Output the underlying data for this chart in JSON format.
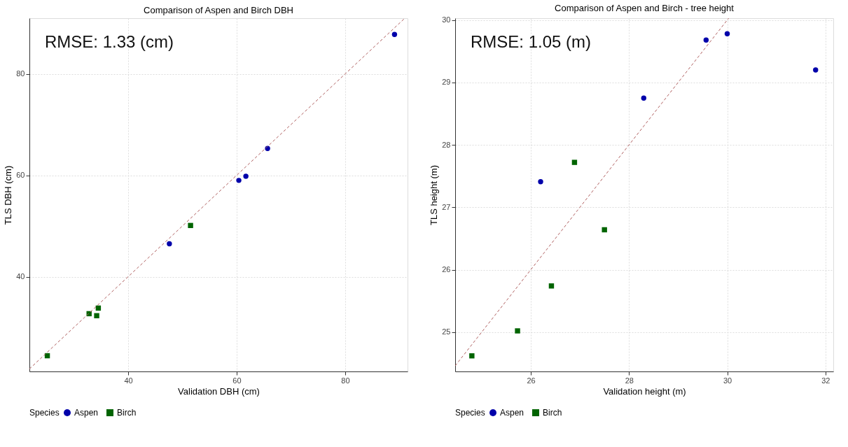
{
  "chart_data": [
    {
      "type": "scatter",
      "title": "Comparison of Aspen and Birch DBH",
      "xlabel": "Validation DBH (cm)",
      "ylabel": "TLS DBH (cm)",
      "legend_title": "Species",
      "legend": "bottom",
      "grid": true,
      "annotations": [
        "RMSE: 1.33 (cm)"
      ],
      "xlim": [
        21.8,
        91.5
      ],
      "ylim": [
        21.3,
        91
      ],
      "xticks": [
        40,
        60,
        80
      ],
      "yticks": [
        40,
        60,
        80
      ],
      "series": [
        {
          "name": "Aspen",
          "color": "#0000aa",
          "marker": "circle",
          "x": [
            89.1,
            65.7,
            60.4,
            61.7,
            47.6
          ],
          "values": [
            87.8,
            65.3,
            59.0,
            59.8,
            46.5
          ]
        },
        {
          "name": "Birch",
          "color": "#006400",
          "marker": "square",
          "x": [
            51.5,
            32.8,
            34.2,
            34.5,
            25.1
          ],
          "values": [
            50.1,
            32.7,
            32.3,
            33.8,
            24.4
          ]
        },
        {
          "type": "line",
          "color": "#b06060",
          "line_style": "dashed",
          "marker": "none",
          "x": [
            21.8,
            91.0
          ],
          "values": [
            21.8,
            91.0
          ]
        }
      ]
    },
    {
      "type": "scatter",
      "title": "Comparison of Aspen and Birch - tree height",
      "xlabel": "Validation height (m)",
      "ylabel": "TLS height (m)",
      "legend_title": "Species",
      "legend": "bottom",
      "grid": true,
      "annotations": [
        "RMSE: 1.05 (m)"
      ],
      "xlim": [
        24.46,
        32.16
      ],
      "ylim": [
        24.37,
        30.03
      ],
      "xticks": [
        26,
        28,
        30,
        32
      ],
      "yticks": [
        25,
        26,
        27,
        28,
        29,
        30
      ],
      "series": [
        {
          "name": "Aspen",
          "color": "#0000aa",
          "marker": "circle",
          "x": [
            26.2,
            28.3,
            29.57,
            30.0,
            31.8
          ],
          "values": [
            27.41,
            28.75,
            29.68,
            29.78,
            29.2
          ]
        },
        {
          "name": "Birch",
          "color": "#006400",
          "marker": "square",
          "x": [
            26.89,
            27.5,
            26.42,
            25.73,
            24.8
          ],
          "values": [
            27.72,
            26.64,
            25.74,
            25.02,
            24.62
          ]
        },
        {
          "type": "line",
          "color": "#b06060",
          "line_style": "dashed",
          "marker": "none",
          "x": [
            24.46,
            30.03
          ],
          "values": [
            24.46,
            30.03
          ]
        }
      ]
    }
  ]
}
